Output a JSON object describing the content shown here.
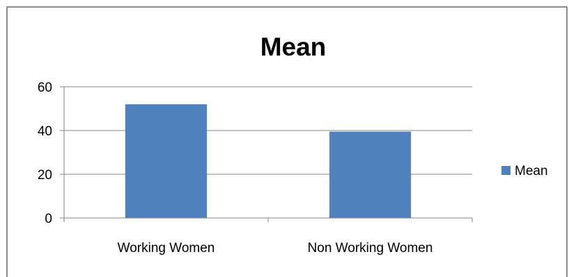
{
  "chart_data": {
    "type": "bar",
    "title": "Mean",
    "xlabel": "",
    "ylabel": "",
    "categories": [
      "Working Women",
      "Non Working Women"
    ],
    "series": [
      {
        "name": "Mean",
        "values": [
          52,
          39.5
        ],
        "color": "#4f81bd"
      }
    ],
    "ylim": [
      0,
      60
    ],
    "yticks": [
      0,
      20,
      40,
      60
    ],
    "grid": true,
    "legend_position": "right",
    "gridline_color": "#868686",
    "axis_color": "#868686"
  }
}
